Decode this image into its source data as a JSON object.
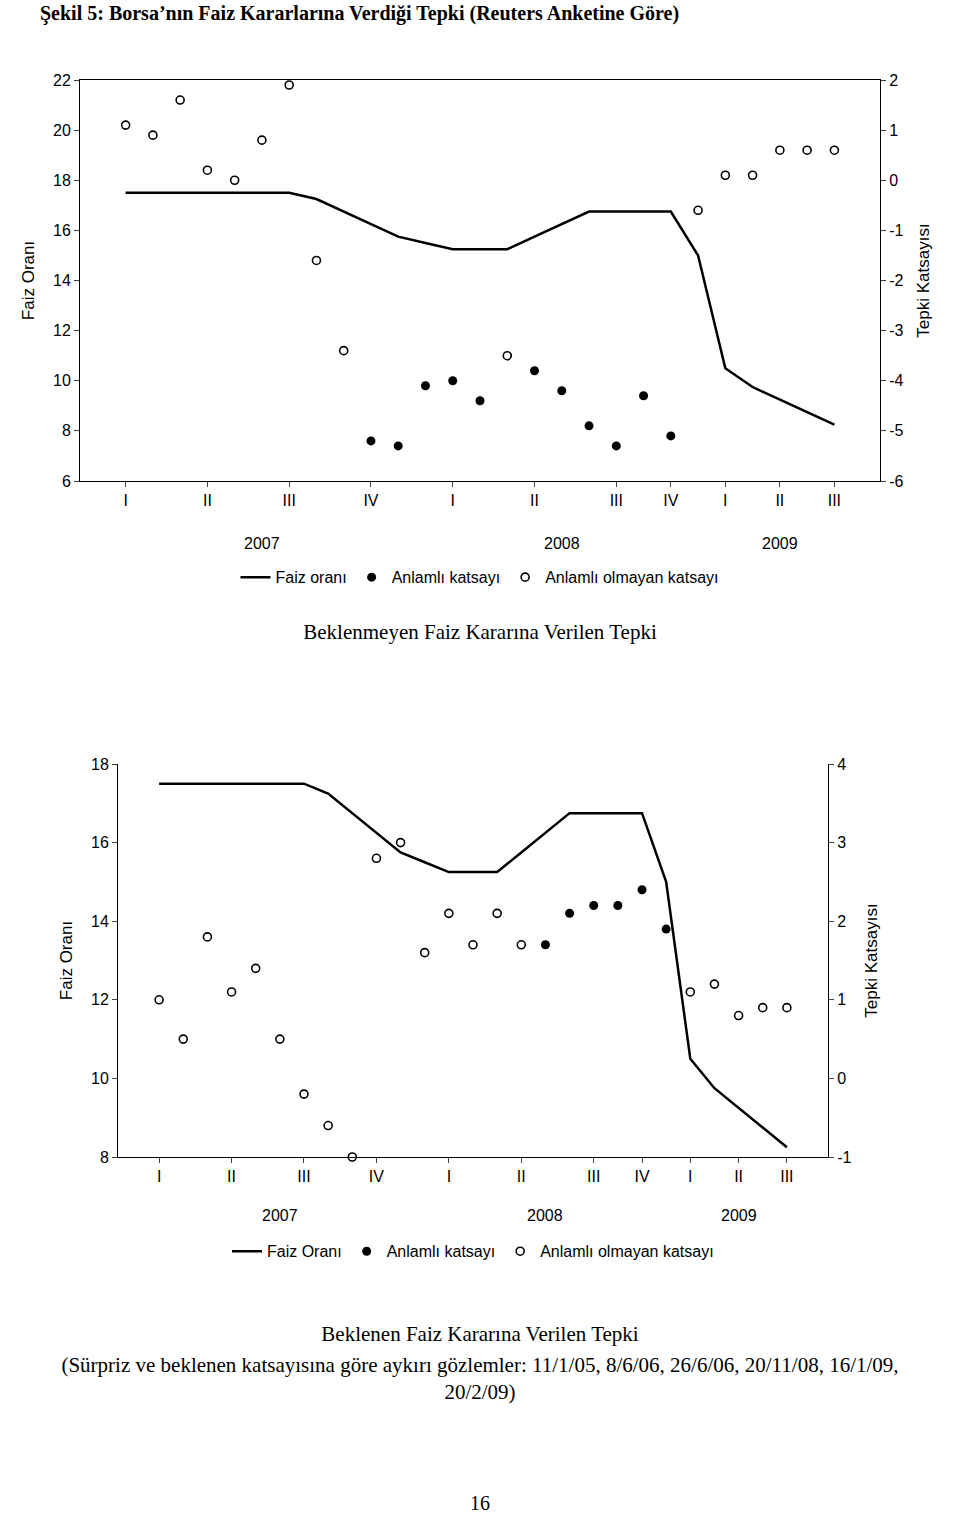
{
  "heading": "Şekil 5: Borsa’nın Faiz Kararlarına Verdiği Tepki (Reuters Anketine Göre)",
  "page_number": "16",
  "chart_data": [
    {
      "type": "line",
      "title": "Beklenmeyen Faiz Kararına Verilen Tepki",
      "y_label": "Faiz Oranı",
      "y2_label": "Tepki Katsayısı",
      "categories": [
        "I",
        null,
        null,
        "II",
        null,
        null,
        "III",
        null,
        null,
        "IV",
        null,
        null,
        "I",
        null,
        null,
        "II",
        null,
        null,
        "III",
        null,
        "IV",
        null,
        "I",
        null,
        "II",
        null,
        "III"
      ],
      "annotations": [
        {
          "text": "2007",
          "x": 5
        },
        {
          "text": "2008",
          "x": 16
        },
        {
          "text": "2009",
          "x": 24
        }
      ],
      "ylim": [
        6,
        22
      ],
      "yticks": [
        6,
        8,
        10,
        12,
        14,
        16,
        18,
        20,
        22
      ],
      "y2lim": [
        -6,
        2
      ],
      "y2ticks": [
        -6,
        -5,
        -4,
        -3,
        -2,
        -1,
        0,
        1,
        2
      ],
      "grid": false,
      "legend": "bottom",
      "series": [
        {
          "name": "Faiz oranı",
          "type": "line",
          "axis": "y",
          "color": "#000000",
          "line_style": "solid",
          "values": [
            17.5,
            17.5,
            17.5,
            17.5,
            17.5,
            17.5,
            17.5,
            17.25,
            16.75,
            16.25,
            15.75,
            15.5,
            15.25,
            15.25,
            15.25,
            15.75,
            16.25,
            16.75,
            16.75,
            16.75,
            16.75,
            15,
            10.5,
            9.75,
            9.25,
            8.75,
            8.25
          ]
        },
        {
          "name": "Anlamlı katsayı",
          "type": "scatter",
          "axis": "y2",
          "color": "#000000",
          "marker": "circle",
          "values": [
            null,
            null,
            null,
            null,
            null,
            null,
            null,
            null,
            null,
            -5.2,
            -5.3,
            -4.1,
            -4.0,
            -4.4,
            null,
            -3.8,
            -4.2,
            -4.9,
            -5.3,
            -4.3,
            -5.1,
            null,
            null,
            null,
            null,
            null,
            null
          ]
        },
        {
          "name": "Anlamlı olmayan katsayı",
          "type": "scatter",
          "axis": "y2",
          "color": "#000000",
          "marker": "circle-open",
          "values": [
            1.1,
            0.9,
            1.6,
            0.2,
            0.0,
            0.8,
            1.9,
            -1.6,
            -3.4,
            null,
            null,
            null,
            null,
            null,
            -3.5,
            null,
            null,
            null,
            null,
            null,
            null,
            -0.6,
            0.1,
            0.1,
            0.6,
            0.6,
            0.6
          ]
        }
      ]
    },
    {
      "type": "line",
      "title": "Beklenen Faiz Kararına Verilen Tepki",
      "subtitle": "(Sürpriz ve beklenen katsayısına göre aykırı gözlemler: 11/1/05, 8/6/06, 26/6/06, 20/11/08, 16/1/09, 20/2/09)",
      "y_label": "Faiz Oranı",
      "y2_label": "Tepki Katsayısı",
      "categories": [
        "I",
        null,
        null,
        "II",
        null,
        null,
        "III",
        null,
        null,
        "IV",
        null,
        null,
        "I",
        null,
        null,
        "II",
        null,
        null,
        "III",
        null,
        "IV",
        null,
        "I",
        null,
        "II",
        null,
        "III"
      ],
      "annotations": [
        {
          "text": "2007",
          "x": 5
        },
        {
          "text": "2008",
          "x": 16
        },
        {
          "text": "2009",
          "x": 24
        }
      ],
      "ylim": [
        8,
        18
      ],
      "yticks": [
        8,
        10,
        12,
        14,
        16,
        18
      ],
      "y2lim": [
        -1,
        4
      ],
      "y2ticks": [
        -1,
        0,
        1,
        2,
        3,
        4
      ],
      "grid": false,
      "legend": "bottom",
      "series": [
        {
          "name": "Faiz Oranı",
          "type": "line",
          "axis": "y",
          "color": "#000000",
          "line_style": "solid",
          "values": [
            17.5,
            17.5,
            17.5,
            17.5,
            17.5,
            17.5,
            17.5,
            17.25,
            16.75,
            16.25,
            15.75,
            15.5,
            15.25,
            15.25,
            15.25,
            15.75,
            16.25,
            16.75,
            16.75,
            16.75,
            16.75,
            15,
            10.5,
            9.75,
            9.25,
            8.75,
            8.25
          ]
        },
        {
          "name": "Anlamlı katsayı",
          "type": "scatter",
          "axis": "y2",
          "color": "#000000",
          "marker": "circle",
          "values": [
            null,
            null,
            null,
            null,
            null,
            null,
            null,
            null,
            null,
            null,
            null,
            null,
            null,
            null,
            null,
            null,
            1.7,
            2.1,
            2.2,
            2.2,
            2.4,
            1.9,
            null,
            null,
            null,
            null,
            null
          ]
        },
        {
          "name": "Anlamlı olmayan katsayı",
          "type": "scatter",
          "axis": "y2",
          "color": "#000000",
          "marker": "circle-open",
          "values": [
            1.0,
            0.5,
            1.8,
            1.1,
            1.4,
            0.5,
            -0.2,
            -0.6,
            -1.0,
            2.8,
            3.0,
            1.6,
            2.1,
            1.7,
            2.1,
            1.7,
            null,
            null,
            null,
            null,
            null,
            null,
            1.1,
            1.2,
            0.8,
            0.9,
            0.9
          ]
        }
      ]
    }
  ]
}
